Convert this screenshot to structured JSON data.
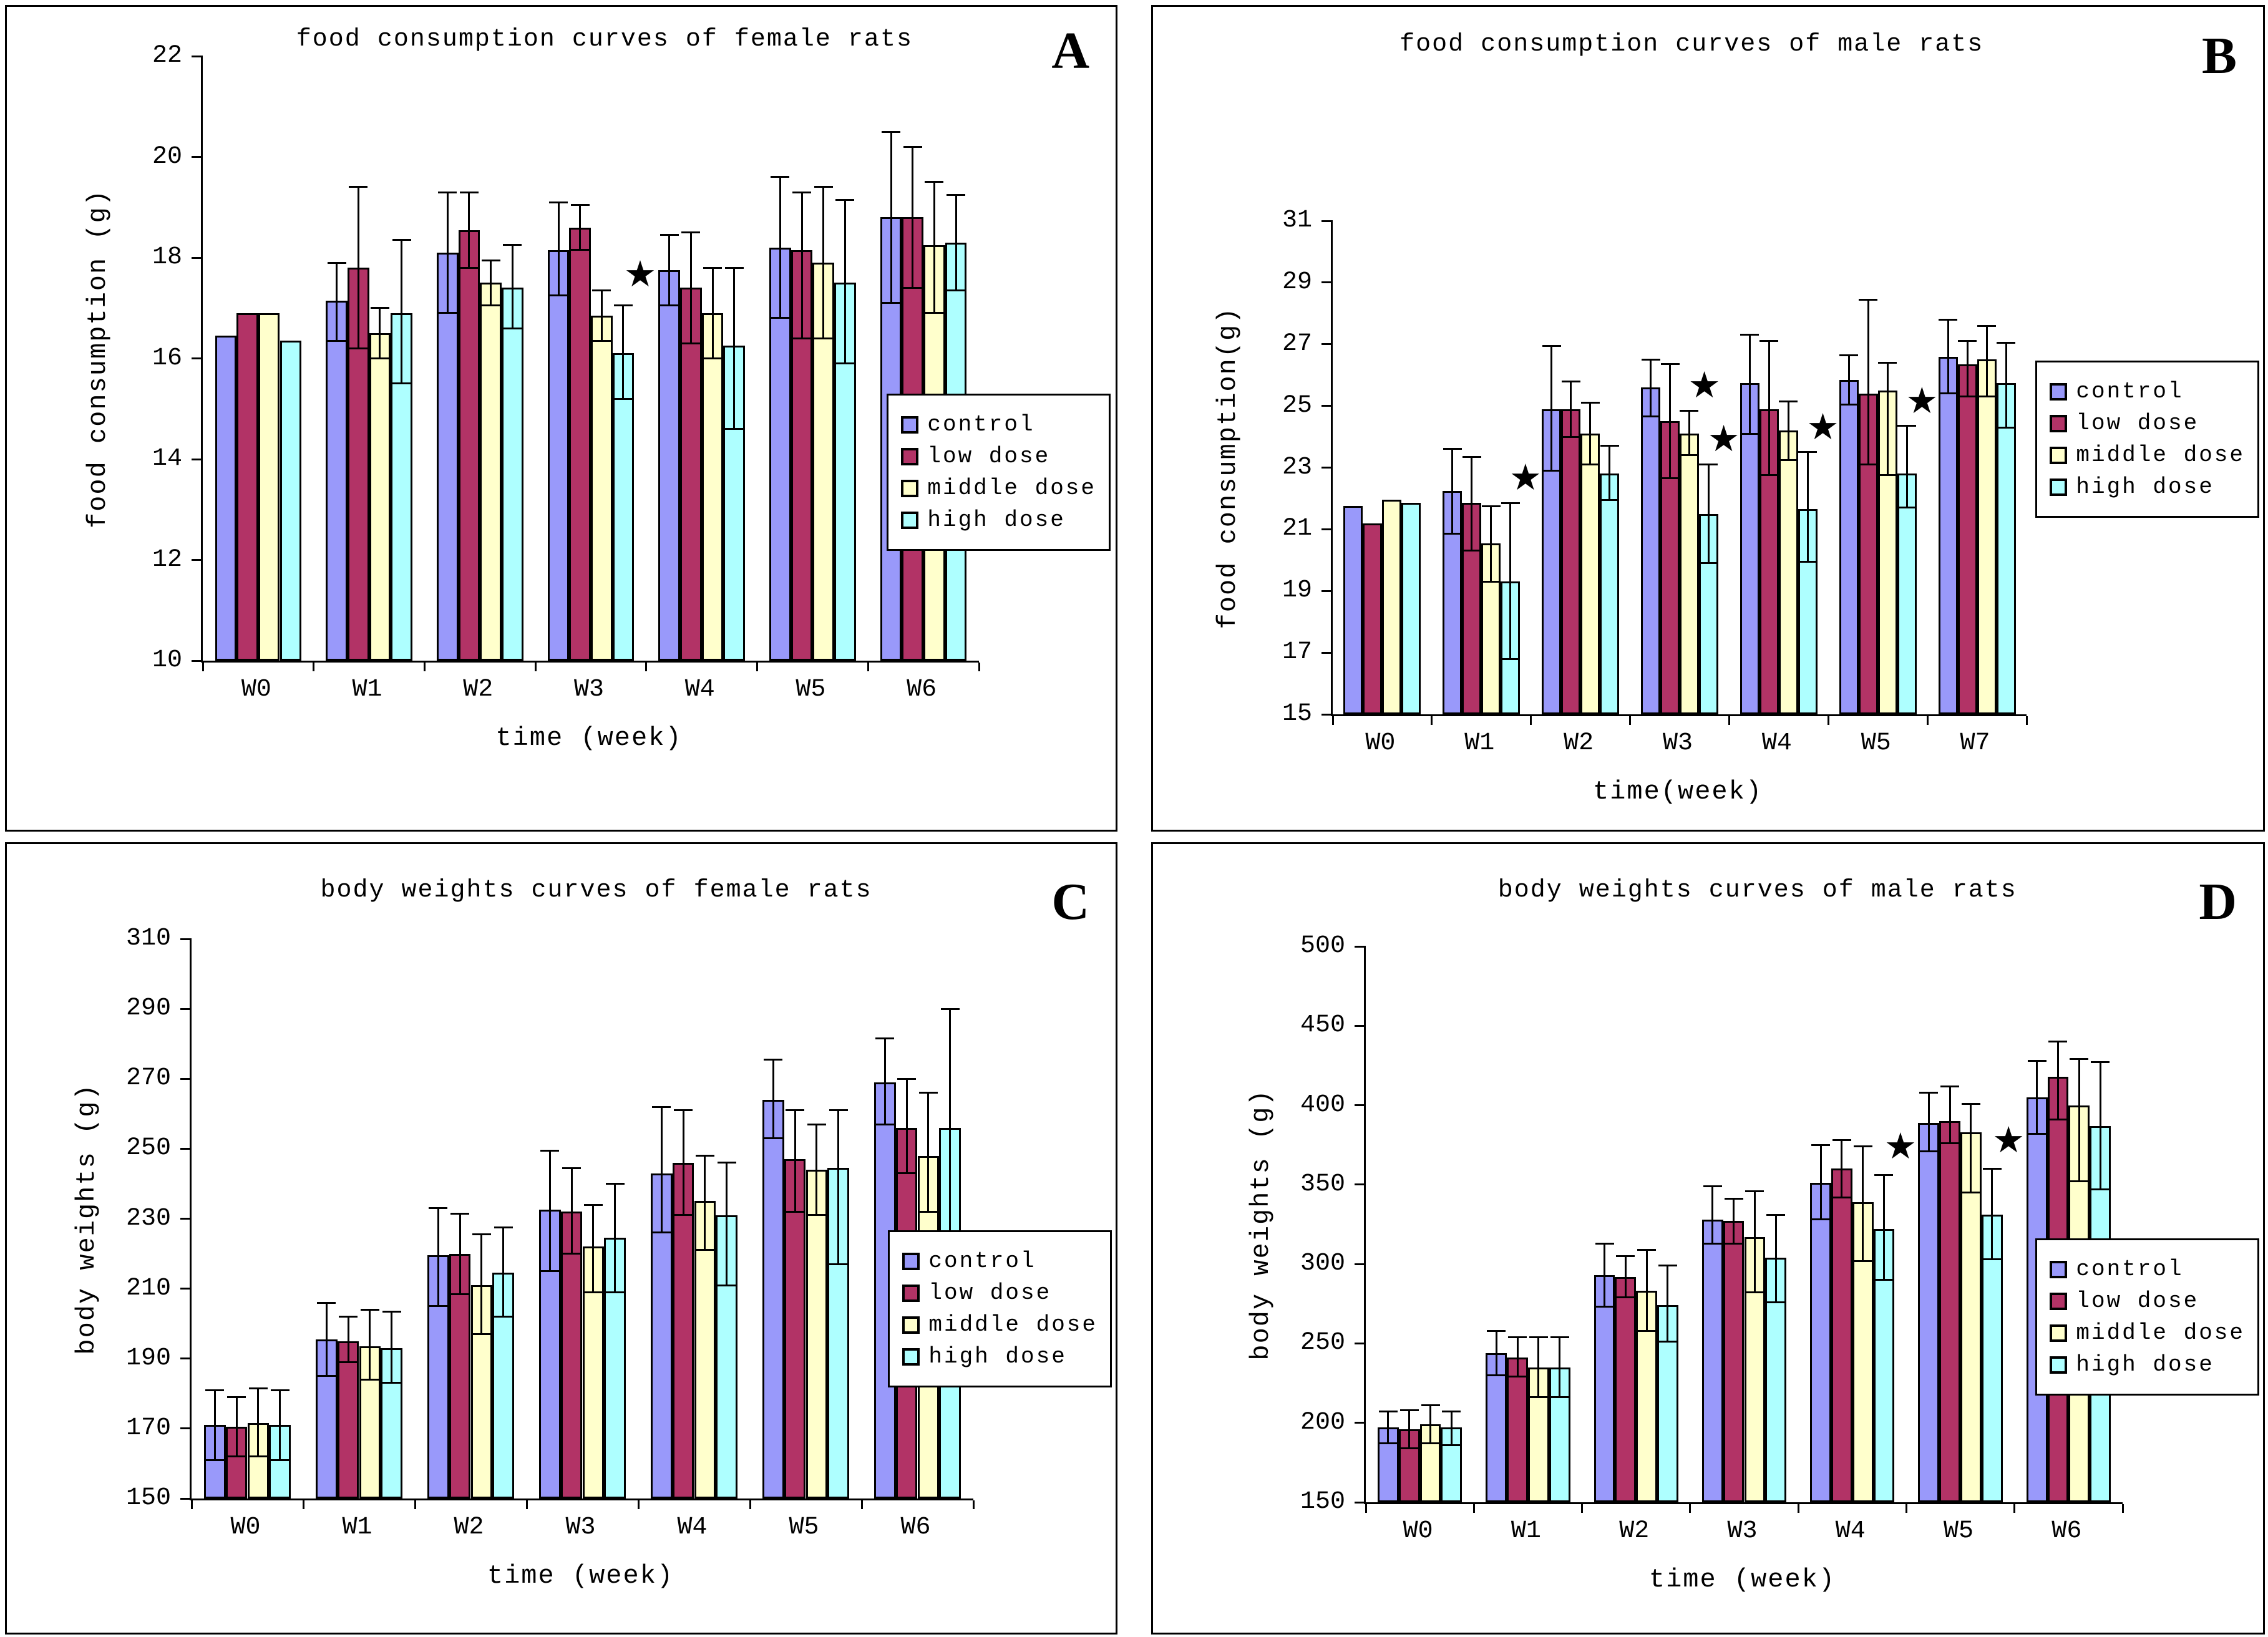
{
  "legend": {
    "items": [
      {
        "label": "control",
        "color": "#9999FA"
      },
      {
        "label": "low dose",
        "color": "#B23366"
      },
      {
        "label": "middle dose",
        "color": "#FFFFCC"
      },
      {
        "label": "high dose",
        "color": "#AEFFFF"
      }
    ]
  },
  "chart_data": [
    {
      "type": "bar",
      "panel_letter": "A",
      "title": "food consumption curves of female rats",
      "xlabel": "time (week)",
      "ylabel": "food consumption (g)",
      "ylim": [
        10,
        22
      ],
      "ytick_step": 2,
      "grid": false,
      "legend_position": "right",
      "categories": [
        "W0",
        "W1",
        "W2",
        "W3",
        "W4",
        "W5",
        "W6"
      ],
      "series": [
        {
          "name": "control",
          "values": [
            16.45,
            17.15,
            18.1,
            18.15,
            17.75,
            18.2,
            18.8
          ],
          "err_low": [
            null,
            16.35,
            16.9,
            17.25,
            17.05,
            16.8,
            17.1
          ],
          "err_high": [
            null,
            17.9,
            19.3,
            19.1,
            18.45,
            19.6,
            20.5
          ]
        },
        {
          "name": "low dose",
          "values": [
            16.9,
            17.8,
            18.55,
            18.6,
            17.4,
            18.15,
            18.8
          ],
          "err_low": [
            null,
            16.2,
            17.8,
            18.15,
            16.3,
            16.4,
            17.4
          ],
          "err_high": [
            null,
            19.4,
            19.3,
            19.05,
            18.5,
            19.3,
            20.2
          ]
        },
        {
          "name": "middle dose",
          "values": [
            16.9,
            16.5,
            17.5,
            16.85,
            16.9,
            17.9,
            18.25
          ],
          "err_low": [
            null,
            16.0,
            17.05,
            16.35,
            16.0,
            16.4,
            16.9
          ],
          "err_high": [
            null,
            17.0,
            17.95,
            17.35,
            17.8,
            19.4,
            19.5
          ]
        },
        {
          "name": "high dose",
          "values": [
            16.35,
            16.9,
            17.4,
            16.1,
            16.25,
            17.5,
            18.3
          ],
          "err_low": [
            null,
            15.5,
            16.6,
            15.2,
            14.6,
            15.9,
            17.35
          ],
          "err_high": [
            null,
            18.35,
            18.25,
            17.05,
            17.8,
            19.15,
            19.25
          ]
        }
      ],
      "stars": [
        {
          "category": "W3",
          "series": "high dose"
        }
      ]
    },
    {
      "type": "bar",
      "panel_letter": "B",
      "title": "food consumption curves of male rats",
      "xlabel": "time(week)",
      "ylabel": "food consumption(g)",
      "ylim": [
        15,
        31
      ],
      "ytick_step": 2,
      "grid": false,
      "legend_position": "right",
      "categories": [
        "W0",
        "W1",
        "W2",
        "W3",
        "W4",
        "W5",
        "W7"
      ],
      "series": [
        {
          "name": "control",
          "values": [
            21.75,
            22.25,
            24.9,
            25.6,
            25.75,
            25.85,
            26.6
          ],
          "err_low": [
            null,
            20.85,
            22.9,
            24.65,
            24.1,
            25.05,
            25.4
          ],
          "err_high": [
            null,
            23.6,
            26.95,
            26.5,
            27.3,
            26.65,
            27.8
          ]
        },
        {
          "name": "low dose",
          "values": [
            21.2,
            21.85,
            24.9,
            24.5,
            24.9,
            25.4,
            26.35
          ],
          "err_low": [
            null,
            20.3,
            24.0,
            22.65,
            22.75,
            23.1,
            25.3
          ],
          "err_high": [
            null,
            23.35,
            25.8,
            26.35,
            27.1,
            28.45,
            27.1
          ]
        },
        {
          "name": "middle dose",
          "values": [
            21.95,
            20.55,
            24.1,
            24.1,
            24.2,
            25.5,
            26.5
          ],
          "err_low": [
            null,
            19.3,
            23.1,
            23.4,
            23.25,
            22.75,
            25.3
          ],
          "err_high": [
            null,
            21.75,
            25.1,
            24.85,
            25.15,
            26.4,
            27.6
          ]
        },
        {
          "name": "high dose",
          "values": [
            21.85,
            19.3,
            22.8,
            21.5,
            21.65,
            22.8,
            25.75
          ],
          "err_low": [
            null,
            16.8,
            21.95,
            19.9,
            19.95,
            21.7,
            24.3
          ],
          "err_high": [
            null,
            21.85,
            23.7,
            23.1,
            23.5,
            24.35,
            27.05
          ]
        }
      ],
      "stars": [
        {
          "category": "W1",
          "series": "high dose"
        },
        {
          "category": "W3",
          "series": "middle dose"
        },
        {
          "category": "W3",
          "series": "high dose"
        },
        {
          "category": "W4",
          "series": "high dose"
        },
        {
          "category": "W5",
          "series": "high dose"
        }
      ]
    },
    {
      "type": "bar",
      "panel_letter": "C",
      "title": "body weights curves of female rats",
      "xlabel": "time (week)",
      "ylabel": "body weights (g)",
      "ylim": [
        150,
        310
      ],
      "ytick_step": 20,
      "grid": false,
      "legend_position": "right",
      "categories": [
        "W0",
        "W1",
        "W2",
        "W3",
        "W4",
        "W5",
        "W6"
      ],
      "series": [
        {
          "name": "control",
          "values": [
            171,
            195.5,
            219.5,
            232.5,
            243,
            264,
            269
          ],
          "err_low": [
            161,
            185,
            205,
            215,
            226,
            253,
            257
          ],
          "err_high": [
            181,
            206,
            233,
            249.5,
            262,
            275.5,
            281.5
          ]
        },
        {
          "name": "low dose",
          "values": [
            170.5,
            195,
            220,
            232,
            246,
            247,
            256
          ],
          "err_low": [
            162,
            189,
            208.5,
            220,
            231,
            232,
            243
          ],
          "err_high": [
            179,
            202,
            231.5,
            244.5,
            261,
            261,
            270
          ]
        },
        {
          "name": "middle dose",
          "values": [
            171.5,
            193.5,
            211,
            222,
            235,
            244,
            248
          ],
          "err_low": [
            162,
            184,
            197,
            209,
            221,
            231,
            232
          ],
          "err_high": [
            181.5,
            204,
            225.5,
            234,
            248,
            257,
            266
          ]
        },
        {
          "name": "high dose",
          "values": [
            171,
            193,
            214.5,
            224.5,
            231,
            244.5,
            256
          ],
          "err_low": [
            161,
            183,
            202,
            209,
            211,
            217,
            223
          ],
          "err_high": [
            181,
            203.5,
            227.5,
            240,
            246,
            261,
            290
          ]
        }
      ],
      "stars": []
    },
    {
      "type": "bar",
      "panel_letter": "D",
      "title": "body weights curves of male rats",
      "xlabel": "time (week)",
      "ylabel": "body weights (g)",
      "ylim": [
        150,
        500
      ],
      "ytick_step": 50,
      "grid": false,
      "legend_position": "right",
      "categories": [
        "W0",
        "W1",
        "W2",
        "W3",
        "W4",
        "W5",
        "W6"
      ],
      "series": [
        {
          "name": "control",
          "values": [
            197,
            244,
            293,
            328,
            351,
            389,
            405
          ],
          "err_low": [
            187,
            230,
            273,
            313,
            328,
            371,
            382
          ],
          "err_high": [
            207,
            258,
            313,
            349,
            375,
            408,
            428
          ]
        },
        {
          "name": "low dose",
          "values": [
            196,
            241,
            292,
            327,
            360,
            390,
            418
          ],
          "err_low": [
            184,
            229,
            279,
            313,
            342,
            376,
            391
          ],
          "err_high": [
            208,
            254,
            305,
            341,
            378,
            412,
            440
          ]
        },
        {
          "name": "middle dose",
          "values": [
            199,
            235,
            283,
            317,
            339,
            383,
            400
          ],
          "err_low": [
            187,
            216,
            258,
            282,
            302,
            345,
            352
          ],
          "err_high": [
            211,
            254,
            309,
            346,
            374,
            401,
            429
          ]
        },
        {
          "name": "high dose",
          "values": [
            197,
            235,
            274,
            304,
            322,
            331,
            387
          ],
          "err_low": [
            186,
            216,
            251,
            276,
            290,
            303,
            347
          ],
          "err_high": [
            207,
            254,
            299,
            331,
            356,
            360,
            427
          ]
        }
      ],
      "stars": [
        {
          "category": "W4",
          "series": "high dose"
        },
        {
          "category": "W5",
          "series": "high dose"
        }
      ]
    }
  ]
}
